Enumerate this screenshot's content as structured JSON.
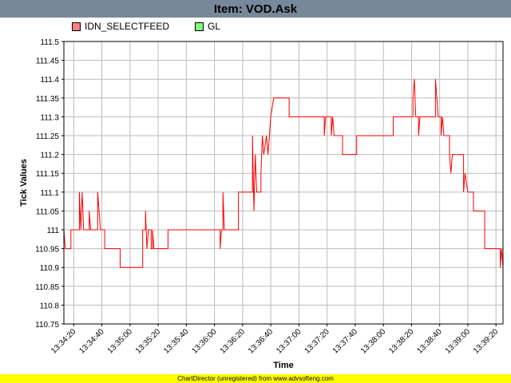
{
  "chart_data": {
    "type": "line",
    "title": "Item: VOD.Ask",
    "xlabel": "Time",
    "ylabel": "Tick Values",
    "ylim": [
      110.75,
      111.5
    ],
    "xlim": [
      "13:34:13",
      "13:39:25"
    ],
    "grid": true,
    "legend_position": "top",
    "y_ticks": [
      "111.5",
      "111.45",
      "111.4",
      "111.35",
      "111.3",
      "111.25",
      "111.2",
      "111.15",
      "111.1",
      "111.05",
      "111",
      "110.95",
      "110.9",
      "110.85",
      "110.8",
      "110.75"
    ],
    "x_ticks": [
      "13:34:20",
      "13:34:40",
      "13:35:00",
      "13:35:20",
      "13:35:40",
      "13:36:00",
      "13:36:20",
      "13:36:40",
      "13:37:00",
      "13:37:20",
      "13:37:40",
      "13:38:00",
      "13:38:20",
      "13:38:40",
      "13:39:00",
      "13:39:20"
    ],
    "series": [
      {
        "name": "IDN_SELECTFEED",
        "color": "#ff0000",
        "fill_color": "#ff8080",
        "points": [
          [
            "13:34:13",
            110.95
          ],
          [
            "13:34:13",
            111.0
          ],
          [
            "13:34:14",
            110.95
          ],
          [
            "13:34:18",
            110.95
          ],
          [
            "13:34:18",
            111.0
          ],
          [
            "13:34:24",
            111.0
          ],
          [
            "13:34:24",
            111.1
          ],
          [
            "13:34:25",
            111.0
          ],
          [
            "13:34:26",
            111.1
          ],
          [
            "13:34:27",
            111.0
          ],
          [
            "13:34:31",
            111.0
          ],
          [
            "13:34:31",
            111.05
          ],
          [
            "13:34:32",
            111.0
          ],
          [
            "13:34:37",
            111.0
          ],
          [
            "13:34:37",
            111.1
          ],
          [
            "13:34:38",
            111.05
          ],
          [
            "13:34:39",
            111.0
          ],
          [
            "13:34:42",
            111.0
          ],
          [
            "13:34:42",
            110.95
          ],
          [
            "13:34:53",
            110.95
          ],
          [
            "13:34:53",
            110.9
          ],
          [
            "13:35:09",
            110.9
          ],
          [
            "13:35:09",
            111.0
          ],
          [
            "13:35:11",
            111.0
          ],
          [
            "13:35:11",
            111.05
          ],
          [
            "13:35:12",
            110.95
          ],
          [
            "13:35:13",
            111.0
          ],
          [
            "13:35:15",
            111.0
          ],
          [
            "13:35:15",
            110.95
          ],
          [
            "13:35:16",
            110.95
          ],
          [
            "13:35:16",
            111.0
          ],
          [
            "13:35:17",
            110.95
          ],
          [
            "13:35:27",
            110.95
          ],
          [
            "13:35:27",
            111.0
          ],
          [
            "13:36:04",
            111.0
          ],
          [
            "13:36:04",
            110.95
          ],
          [
            "13:36:05",
            111.0
          ],
          [
            "13:36:06",
            111.0
          ],
          [
            "13:36:06",
            111.1
          ],
          [
            "13:36:07",
            111.0
          ],
          [
            "13:36:17",
            111.0
          ],
          [
            "13:36:17",
            111.1
          ],
          [
            "13:36:27",
            111.1
          ],
          [
            "13:36:27",
            111.25
          ],
          [
            "13:36:28",
            111.05
          ],
          [
            "13:36:29",
            111.2
          ],
          [
            "13:36:30",
            111.1
          ],
          [
            "13:36:33",
            111.1
          ],
          [
            "13:36:33",
            111.15
          ],
          [
            "13:36:34",
            111.25
          ],
          [
            "13:36:35",
            111.2
          ],
          [
            "13:36:37",
            111.25
          ],
          [
            "13:36:38",
            111.2
          ],
          [
            "13:36:39",
            111.25
          ],
          [
            "13:36:40",
            111.3
          ],
          [
            "13:36:42",
            111.35
          ],
          [
            "13:36:53",
            111.35
          ],
          [
            "13:36:53",
            111.3
          ],
          [
            "13:37:18",
            111.3
          ],
          [
            "13:37:18",
            111.25
          ],
          [
            "13:37:19",
            111.3
          ],
          [
            "13:37:23",
            111.3
          ],
          [
            "13:37:23",
            111.25
          ],
          [
            "13:37:24",
            111.3
          ],
          [
            "13:37:25",
            111.25
          ],
          [
            "13:37:31",
            111.25
          ],
          [
            "13:37:31",
            111.2
          ],
          [
            "13:37:41",
            111.2
          ],
          [
            "13:37:41",
            111.25
          ],
          [
            "13:38:07",
            111.25
          ],
          [
            "13:38:07",
            111.3
          ],
          [
            "13:38:21",
            111.3
          ],
          [
            "13:38:21",
            111.35
          ],
          [
            "13:38:22",
            111.4
          ],
          [
            "13:38:23",
            111.3
          ],
          [
            "13:38:25",
            111.3
          ],
          [
            "13:38:25",
            111.25
          ],
          [
            "13:38:26",
            111.3
          ],
          [
            "13:38:37",
            111.3
          ],
          [
            "13:38:37",
            111.4
          ],
          [
            "13:38:39",
            111.3
          ],
          [
            "13:38:41",
            111.3
          ],
          [
            "13:38:41",
            111.25
          ],
          [
            "13:38:42",
            111.3
          ],
          [
            "13:38:43",
            111.25
          ],
          [
            "13:38:47",
            111.25
          ],
          [
            "13:38:47",
            111.2
          ],
          [
            "13:38:48",
            111.15
          ],
          [
            "13:38:49",
            111.2
          ],
          [
            "13:38:57",
            111.2
          ],
          [
            "13:38:57",
            111.1
          ],
          [
            "13:38:58",
            111.15
          ],
          [
            "13:39:00",
            111.1
          ],
          [
            "13:39:04",
            111.1
          ],
          [
            "13:39:04",
            111.05
          ],
          [
            "13:39:12",
            111.05
          ],
          [
            "13:39:12",
            110.95
          ],
          [
            "13:39:18",
            110.95
          ],
          [
            "13:39:18",
            110.95
          ],
          [
            "13:39:23",
            110.95
          ],
          [
            "13:39:23",
            110.9
          ],
          [
            "13:39:24",
            110.95
          ],
          [
            "13:39:25",
            110.9
          ],
          [
            "13:39:25",
            110.85
          ]
        ]
      },
      {
        "name": "GL",
        "color": "#00c000",
        "fill_color": "#80ff80",
        "points": []
      }
    ]
  },
  "footer": {
    "text": "ChartDirector (unregistered) from www.advsofteng.com"
  }
}
